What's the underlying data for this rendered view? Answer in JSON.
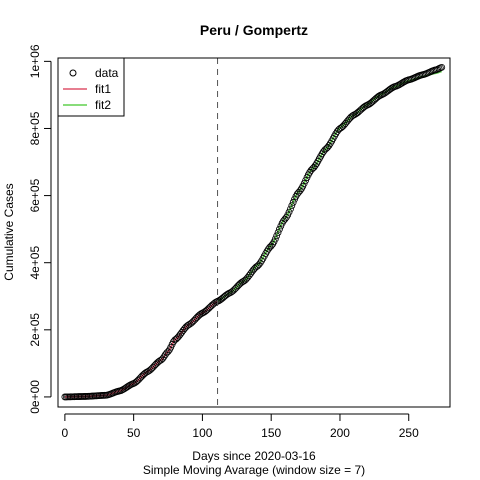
{
  "chart_data": {
    "type": "scatter",
    "title": "Peru / Gompertz",
    "xlabel": "Days since 2020-03-16",
    "xlabel2": "Simple Moving Avarage (window size = 7)",
    "ylabel": "Cumulative Cases",
    "xlim": [
      -5,
      280
    ],
    "ylim": [
      -30000,
      1010000
    ],
    "x_ticks": [
      0,
      50,
      100,
      150,
      200,
      250
    ],
    "y_ticks": [
      {
        "value": 0,
        "label": "0e+00"
      },
      {
        "value": 200000,
        "label": "2e+05"
      },
      {
        "value": 400000,
        "label": "4e+05"
      },
      {
        "value": 600000,
        "label": "6e+05"
      },
      {
        "value": 800000,
        "label": "8e+05"
      },
      {
        "value": 1000000,
        "label": "1e+06"
      }
    ],
    "cutoff_x": 111,
    "series": [
      {
        "name": "data",
        "kind": "points",
        "color": "#000000",
        "x": [
          0,
          15,
          30,
          40,
          50,
          60,
          70,
          75,
          80,
          90,
          100,
          111,
          120,
          130,
          140,
          150,
          160,
          170,
          180,
          190,
          200,
          210,
          220,
          230,
          240,
          250,
          260,
          270,
          274
        ],
        "y": [
          0,
          1500,
          5000,
          18000,
          40000,
          75000,
          110000,
          135000,
          170000,
          215000,
          250000,
          285000,
          310000,
          345000,
          390000,
          450000,
          530000,
          610000,
          680000,
          740000,
          800000,
          840000,
          870000,
          900000,
          925000,
          945000,
          960000,
          975000,
          982000
        ]
      },
      {
        "name": "fit1",
        "kind": "line",
        "color": "#df536b",
        "x": [
          0,
          15,
          30,
          40,
          50,
          60,
          70,
          75,
          80,
          90,
          100,
          111
        ],
        "y": [
          0,
          1500,
          5000,
          18000,
          40000,
          75000,
          110000,
          135000,
          170000,
          215000,
          250000,
          285000
        ]
      },
      {
        "name": "fit2",
        "kind": "line",
        "color": "#61d04f",
        "x": [
          111,
          120,
          130,
          140,
          150,
          160,
          170,
          180,
          190,
          200,
          210,
          220,
          230,
          240,
          250,
          260,
          270,
          274
        ],
        "y": [
          285000,
          310000,
          345000,
          392000,
          452000,
          532000,
          612000,
          680000,
          740000,
          802000,
          840000,
          872000,
          902000,
          925000,
          942000,
          955000,
          965000,
          970000
        ]
      }
    ],
    "legend": {
      "position": "top-left",
      "entries": [
        "data",
        "fit1",
        "fit2"
      ]
    }
  }
}
